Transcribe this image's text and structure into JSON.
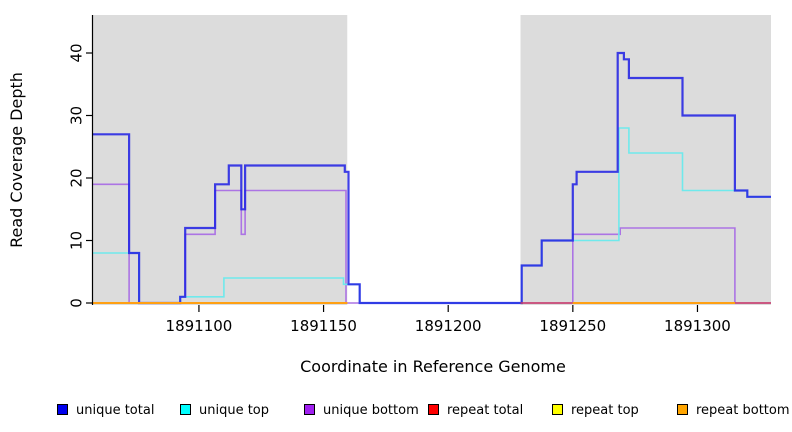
{
  "chart_data": {
    "type": "line",
    "subtype": "step-coverage",
    "title": "",
    "xlabel": "Coordinate in Reference Genome",
    "ylabel": "Read Coverage Depth",
    "xlim": [
      1891057.5,
      1891329.5
    ],
    "ylim": [
      0,
      45
    ],
    "xticks": [
      1891100,
      1891150,
      1891200,
      1891250,
      1891300
    ],
    "yticks": [
      0,
      10,
      20,
      30,
      40
    ],
    "grid": false,
    "legend_position": "bottom",
    "shade_color": "#DCDCDC",
    "shaded_regions": [
      {
        "name": "repeat-region-1",
        "start": 1891057.5,
        "end": 1891159.5
      },
      {
        "name": "repeat-region-2",
        "start": 1891229.0,
        "end": 1891329.5
      }
    ],
    "series": [
      {
        "name": "unique total",
        "color": "#2424E4",
        "legend_color": "#0000EE",
        "width": 2.2,
        "opacity": 0.88,
        "segments": [
          [
            [
              1891057.5,
              27
            ],
            [
              1891072,
              8
            ],
            [
              1891076,
              0
            ],
            [
              1891092.5,
              1
            ],
            [
              1891094.5,
              12
            ],
            [
              1891106.5,
              19
            ],
            [
              1891112,
              22
            ],
            [
              1891117,
              15
            ],
            [
              1891118.5,
              22
            ],
            [
              1891158.5,
              21
            ],
            [
              1891160,
              3
            ],
            [
              1891164.5,
              0
            ],
            [
              1891229.5,
              6
            ],
            [
              1891237.5,
              10
            ],
            [
              1891250,
              19
            ],
            [
              1891251.5,
              21
            ],
            [
              1891268,
              40
            ],
            [
              1891270.5,
              39
            ],
            [
              1891272.5,
              36
            ],
            [
              1891294,
              30
            ],
            [
              1891315,
              18
            ],
            [
              1891320,
              17
            ],
            [
              1891329.5,
              17
            ]
          ]
        ]
      },
      {
        "name": "unique top",
        "color": "#6FE9EC",
        "legend_color": "#00FFFF",
        "width": 1.6,
        "opacity": 1,
        "segments": [
          [
            [
              1891057.5,
              8
            ],
            [
              1891076,
              0
            ],
            [
              1891092.5,
              1
            ],
            [
              1891110,
              4
            ],
            [
              1891158,
              3
            ],
            [
              1891164.5,
              0
            ],
            [
              1891229.5,
              6
            ],
            [
              1891237.5,
              10
            ],
            [
              1891268.5,
              28
            ],
            [
              1891272.5,
              24
            ],
            [
              1891294,
              18
            ],
            [
              1891320,
              17
            ],
            [
              1891329.5,
              17
            ]
          ]
        ]
      },
      {
        "name": "unique bottom",
        "color": "#AC74E4",
        "legend_color": "#A020F0",
        "width": 1.6,
        "opacity": 1,
        "segments": [
          [
            [
              1891057.5,
              19
            ],
            [
              1891072,
              0
            ],
            [
              1891092.5,
              1
            ],
            [
              1891094.5,
              11
            ],
            [
              1891106.5,
              18
            ],
            [
              1891117,
              11
            ],
            [
              1891118.5,
              18
            ],
            [
              1891159,
              0
            ],
            [
              1891250,
              11
            ],
            [
              1891269,
              12
            ],
            [
              1891315,
              0
            ],
            [
              1891329.5,
              0
            ]
          ]
        ]
      },
      {
        "name": "repeat total",
        "color": "#CB3D63",
        "legend_color": "#FF0000",
        "width": 1.6,
        "opacity": 1,
        "segments": [
          [
            [
              1891057.5,
              0
            ],
            [
              1891159.5,
              0
            ]
          ],
          [
            [
              1891229,
              0
            ],
            [
              1891329.5,
              0
            ]
          ]
        ]
      },
      {
        "name": "repeat top",
        "color": "#FFEB00",
        "legend_color": "#FFFF00",
        "width": 1.6,
        "opacity": 1,
        "segments": [
          [
            [
              1891057.5,
              0
            ],
            [
              1891159.5,
              0
            ]
          ],
          [
            [
              1891250,
              0
            ],
            [
              1891315,
              0
            ]
          ]
        ]
      },
      {
        "name": "repeat bottom",
        "color": "#FFA013",
        "legend_color": "#FFA500",
        "width": 2,
        "opacity": 1,
        "segments": [
          [
            [
              1891057.5,
              0
            ],
            [
              1891159.5,
              0
            ]
          ],
          [
            [
              1891250,
              0
            ],
            [
              1891315,
              0
            ]
          ]
        ]
      }
    ]
  },
  "axis_tick_labels": {
    "x": [
      "1891100",
      "1891150",
      "1891200",
      "1891250",
      "1891300"
    ],
    "y": [
      "0",
      "10",
      "20",
      "30",
      "40"
    ]
  },
  "legend": {
    "items": [
      {
        "label": "unique total",
        "color": "#0000EE"
      },
      {
        "label": "unique top",
        "color": "#00FFFF"
      },
      {
        "label": "unique bottom",
        "color": "#A020F0"
      },
      {
        "label": "repeat total",
        "color": "#FF0000"
      },
      {
        "label": "repeat top",
        "color": "#FFFF00"
      },
      {
        "label": "repeat bottom",
        "color": "#FFA500"
      }
    ]
  }
}
